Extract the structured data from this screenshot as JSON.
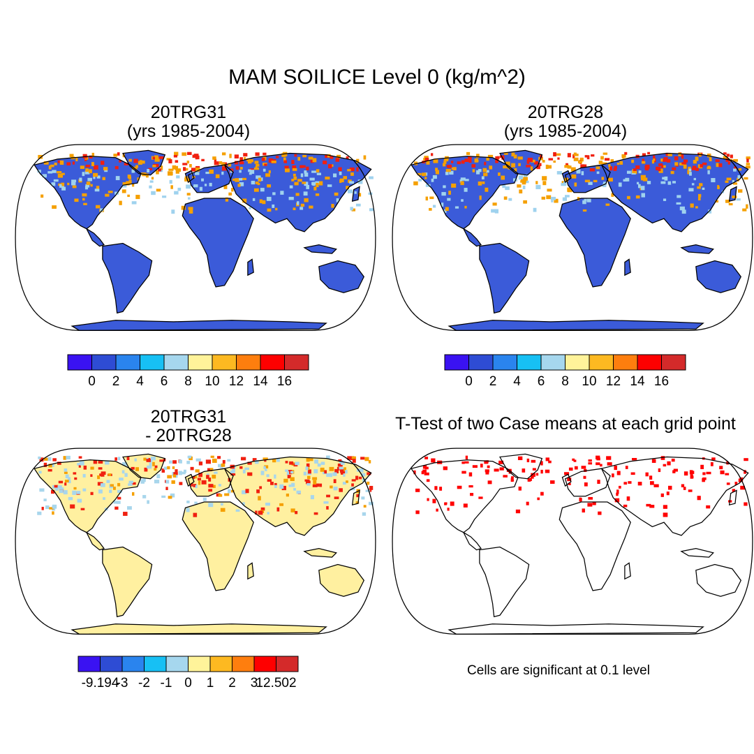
{
  "title": "MAM SOILICE Level 0 (kg/m^2)",
  "colors": {
    "ocean": "#ffffff",
    "land_low": "#3b5bd9",
    "cold_high": "#f02010",
    "cold_mid": "#f5a000",
    "cold_light": "#9fd2ee",
    "diff_land": "#fff0a0",
    "diff_light_blue": "#a8d6ec",
    "sig_red": "#ff0000",
    "outline": "#000000"
  },
  "panels": [
    {
      "title1": "20TRG31",
      "title2": "(yrs 1985-2004)",
      "field": "case1"
    },
    {
      "title1": "20TRG28",
      "title2": "(yrs 1985-2004)",
      "field": "case2"
    },
    {
      "title1": "20TRG31",
      "title2": "- 20TRG28",
      "field": "difference"
    },
    {
      "title1": "T-Test of two Case means at each grid point",
      "title2": "",
      "field": "significance"
    }
  ],
  "colorbars": [
    {
      "colors": [
        "#3a12f2",
        "#2e4cd4",
        "#2a84ee",
        "#17c0f4",
        "#a6d7ee",
        "#fff39a",
        "#fdb921",
        "#fe7e0e",
        "#fe0000",
        "#d42a2a"
      ],
      "labels": [
        "0",
        "2",
        "4",
        "6",
        "8",
        "10",
        "12",
        "14",
        "16"
      ]
    },
    {
      "colors": [
        "#3a12f2",
        "#2e4cd4",
        "#2a84ee",
        "#17c0f4",
        "#a6d7ee",
        "#fff39a",
        "#fdb921",
        "#fe7e0e",
        "#fe0000",
        "#d42a2a"
      ],
      "labels": [
        "0",
        "2",
        "4",
        "6",
        "8",
        "10",
        "12",
        "14",
        "16"
      ]
    },
    {
      "colors": [
        "#3a12f2",
        "#2e4cd4",
        "#2a84ee",
        "#17c0f4",
        "#a6d7ee",
        "#fff39a",
        "#fdb921",
        "#fe7e0e",
        "#fe0000",
        "#d42a2a"
      ],
      "labels": [
        "-9.194",
        "-3",
        "-2",
        "-1",
        "0",
        "1",
        "2",
        "3",
        "12.502"
      ]
    }
  ],
  "significance_note": "Cells are significant at 0.1 level"
}
